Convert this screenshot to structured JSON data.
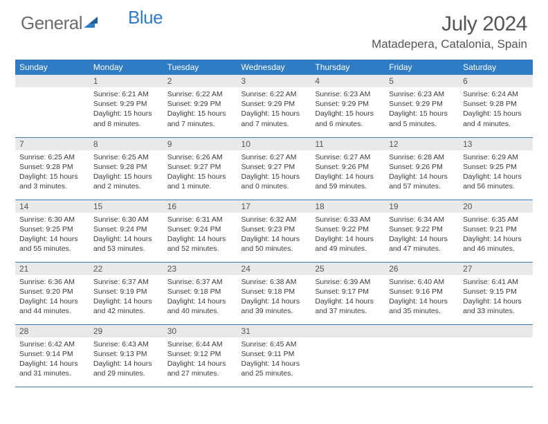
{
  "brand": {
    "part1": "General",
    "part2": "Blue"
  },
  "title": "July 2024",
  "location": "Matadepera, Catalonia, Spain",
  "colors": {
    "header_bg": "#2f7bc4",
    "header_text": "#ffffff",
    "daynum_bg": "#e9e9e9",
    "row_border": "#3a7ab0",
    "text": "#3a3a3a",
    "logo_gray": "#6b6b6b",
    "logo_blue": "#2f7bc4"
  },
  "typography": {
    "title_fontsize": 30,
    "location_fontsize": 17,
    "weekday_fontsize": 12,
    "daynum_fontsize": 12,
    "body_fontsize": 10.5
  },
  "weekdays": [
    "Sunday",
    "Monday",
    "Tuesday",
    "Wednesday",
    "Thursday",
    "Friday",
    "Saturday"
  ],
  "weeks": [
    [
      {
        "n": "",
        "sunrise": "",
        "sunset": "",
        "daylight": ""
      },
      {
        "n": "1",
        "sunrise": "Sunrise: 6:21 AM",
        "sunset": "Sunset: 9:29 PM",
        "daylight": "Daylight: 15 hours and 8 minutes."
      },
      {
        "n": "2",
        "sunrise": "Sunrise: 6:22 AM",
        "sunset": "Sunset: 9:29 PM",
        "daylight": "Daylight: 15 hours and 7 minutes."
      },
      {
        "n": "3",
        "sunrise": "Sunrise: 6:22 AM",
        "sunset": "Sunset: 9:29 PM",
        "daylight": "Daylight: 15 hours and 7 minutes."
      },
      {
        "n": "4",
        "sunrise": "Sunrise: 6:23 AM",
        "sunset": "Sunset: 9:29 PM",
        "daylight": "Daylight: 15 hours and 6 minutes."
      },
      {
        "n": "5",
        "sunrise": "Sunrise: 6:23 AM",
        "sunset": "Sunset: 9:29 PM",
        "daylight": "Daylight: 15 hours and 5 minutes."
      },
      {
        "n": "6",
        "sunrise": "Sunrise: 6:24 AM",
        "sunset": "Sunset: 9:28 PM",
        "daylight": "Daylight: 15 hours and 4 minutes."
      }
    ],
    [
      {
        "n": "7",
        "sunrise": "Sunrise: 6:25 AM",
        "sunset": "Sunset: 9:28 PM",
        "daylight": "Daylight: 15 hours and 3 minutes."
      },
      {
        "n": "8",
        "sunrise": "Sunrise: 6:25 AM",
        "sunset": "Sunset: 9:28 PM",
        "daylight": "Daylight: 15 hours and 2 minutes."
      },
      {
        "n": "9",
        "sunrise": "Sunrise: 6:26 AM",
        "sunset": "Sunset: 9:27 PM",
        "daylight": "Daylight: 15 hours and 1 minute."
      },
      {
        "n": "10",
        "sunrise": "Sunrise: 6:27 AM",
        "sunset": "Sunset: 9:27 PM",
        "daylight": "Daylight: 15 hours and 0 minutes."
      },
      {
        "n": "11",
        "sunrise": "Sunrise: 6:27 AM",
        "sunset": "Sunset: 9:26 PM",
        "daylight": "Daylight: 14 hours and 59 minutes."
      },
      {
        "n": "12",
        "sunrise": "Sunrise: 6:28 AM",
        "sunset": "Sunset: 9:26 PM",
        "daylight": "Daylight: 14 hours and 57 minutes."
      },
      {
        "n": "13",
        "sunrise": "Sunrise: 6:29 AM",
        "sunset": "Sunset: 9:25 PM",
        "daylight": "Daylight: 14 hours and 56 minutes."
      }
    ],
    [
      {
        "n": "14",
        "sunrise": "Sunrise: 6:30 AM",
        "sunset": "Sunset: 9:25 PM",
        "daylight": "Daylight: 14 hours and 55 minutes."
      },
      {
        "n": "15",
        "sunrise": "Sunrise: 6:30 AM",
        "sunset": "Sunset: 9:24 PM",
        "daylight": "Daylight: 14 hours and 53 minutes."
      },
      {
        "n": "16",
        "sunrise": "Sunrise: 6:31 AM",
        "sunset": "Sunset: 9:24 PM",
        "daylight": "Daylight: 14 hours and 52 minutes."
      },
      {
        "n": "17",
        "sunrise": "Sunrise: 6:32 AM",
        "sunset": "Sunset: 9:23 PM",
        "daylight": "Daylight: 14 hours and 50 minutes."
      },
      {
        "n": "18",
        "sunrise": "Sunrise: 6:33 AM",
        "sunset": "Sunset: 9:22 PM",
        "daylight": "Daylight: 14 hours and 49 minutes."
      },
      {
        "n": "19",
        "sunrise": "Sunrise: 6:34 AM",
        "sunset": "Sunset: 9:22 PM",
        "daylight": "Daylight: 14 hours and 47 minutes."
      },
      {
        "n": "20",
        "sunrise": "Sunrise: 6:35 AM",
        "sunset": "Sunset: 9:21 PM",
        "daylight": "Daylight: 14 hours and 46 minutes."
      }
    ],
    [
      {
        "n": "21",
        "sunrise": "Sunrise: 6:36 AM",
        "sunset": "Sunset: 9:20 PM",
        "daylight": "Daylight: 14 hours and 44 minutes."
      },
      {
        "n": "22",
        "sunrise": "Sunrise: 6:37 AM",
        "sunset": "Sunset: 9:19 PM",
        "daylight": "Daylight: 14 hours and 42 minutes."
      },
      {
        "n": "23",
        "sunrise": "Sunrise: 6:37 AM",
        "sunset": "Sunset: 9:18 PM",
        "daylight": "Daylight: 14 hours and 40 minutes."
      },
      {
        "n": "24",
        "sunrise": "Sunrise: 6:38 AM",
        "sunset": "Sunset: 9:18 PM",
        "daylight": "Daylight: 14 hours and 39 minutes."
      },
      {
        "n": "25",
        "sunrise": "Sunrise: 6:39 AM",
        "sunset": "Sunset: 9:17 PM",
        "daylight": "Daylight: 14 hours and 37 minutes."
      },
      {
        "n": "26",
        "sunrise": "Sunrise: 6:40 AM",
        "sunset": "Sunset: 9:16 PM",
        "daylight": "Daylight: 14 hours and 35 minutes."
      },
      {
        "n": "27",
        "sunrise": "Sunrise: 6:41 AM",
        "sunset": "Sunset: 9:15 PM",
        "daylight": "Daylight: 14 hours and 33 minutes."
      }
    ],
    [
      {
        "n": "28",
        "sunrise": "Sunrise: 6:42 AM",
        "sunset": "Sunset: 9:14 PM",
        "daylight": "Daylight: 14 hours and 31 minutes."
      },
      {
        "n": "29",
        "sunrise": "Sunrise: 6:43 AM",
        "sunset": "Sunset: 9:13 PM",
        "daylight": "Daylight: 14 hours and 29 minutes."
      },
      {
        "n": "30",
        "sunrise": "Sunrise: 6:44 AM",
        "sunset": "Sunset: 9:12 PM",
        "daylight": "Daylight: 14 hours and 27 minutes."
      },
      {
        "n": "31",
        "sunrise": "Sunrise: 6:45 AM",
        "sunset": "Sunset: 9:11 PM",
        "daylight": "Daylight: 14 hours and 25 minutes."
      },
      {
        "n": "",
        "sunrise": "",
        "sunset": "",
        "daylight": ""
      },
      {
        "n": "",
        "sunrise": "",
        "sunset": "",
        "daylight": ""
      },
      {
        "n": "",
        "sunrise": "",
        "sunset": "",
        "daylight": ""
      }
    ]
  ]
}
